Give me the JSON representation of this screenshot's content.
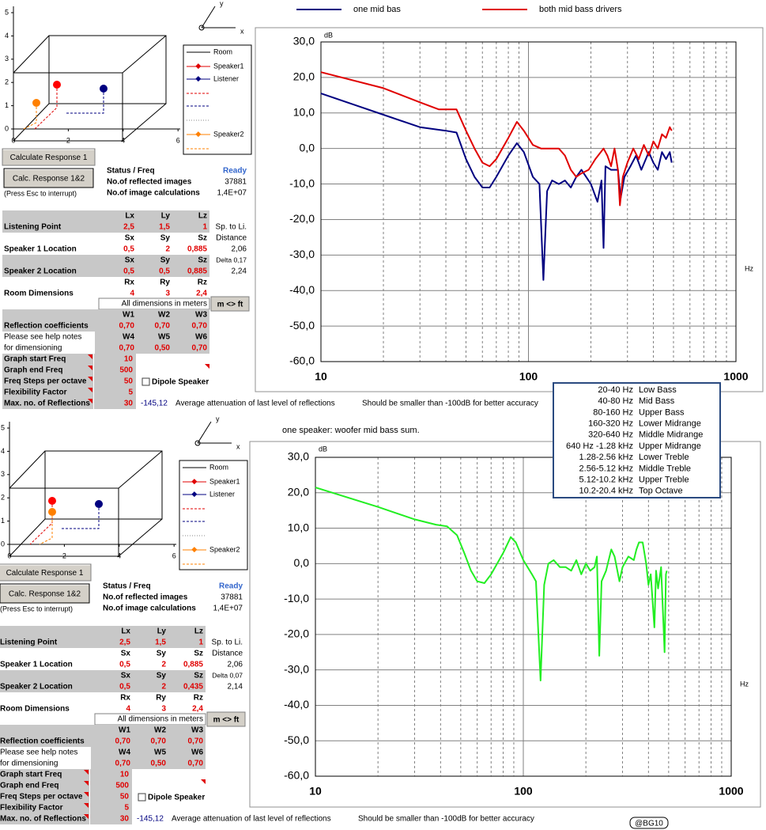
{
  "panels": [
    {
      "diagram": {
        "xticks": [
          0,
          2,
          4,
          6
        ],
        "yticks": [
          0,
          1,
          2,
          3,
          4,
          5
        ],
        "axis_x": "x",
        "axis_y": "y",
        "legend": [
          "Room",
          "Speaker1",
          "Listener",
          "Speaker2"
        ]
      },
      "buttons": [
        "Calculate Response 1",
        "Calc. Response 1&2"
      ],
      "interrupt_note": "(Press Esc to interrupt)",
      "status": [
        [
          "Status / Freq",
          "Ready"
        ],
        [
          "No.of reflected images",
          "37881"
        ],
        [
          "No.of image calculations",
          "1,4E+07"
        ]
      ],
      "blocks": [
        {
          "label": "Listening Point",
          "headers": [
            "Lx",
            "Ly",
            "Lz"
          ],
          "values": [
            "2,5",
            "1,5",
            "1"
          ],
          "side_value": "Sp. to Li."
        },
        {
          "label": "Speaker 1 Location",
          "headers": [
            "Sx",
            "Sy",
            "Sz"
          ],
          "values": [
            "0,5",
            "2",
            "0,885"
          ],
          "side_header": "Distance",
          "side_value": "2,06"
        },
        {
          "label": "Speaker 2 Location",
          "headers": [
            "Sx",
            "Sy",
            "Sz"
          ],
          "values": [
            "0,5",
            "0,5",
            "0,885"
          ],
          "side_header": "Delta 0,17",
          "side_value": "2,24"
        },
        {
          "label": "Room Dimensions",
          "headers": [
            "Rx",
            "Ry",
            "Rz"
          ],
          "values": [
            "4",
            "3",
            "2,4"
          ]
        }
      ],
      "units_note": "All dimensions in meters",
      "unit_button": "m <> ft",
      "reflection": [
        {
          "label": "Reflection coefficients",
          "headers": [
            "W1",
            "W2",
            "W3"
          ],
          "values": [
            "0,70",
            "0,70",
            "0,70"
          ]
        },
        {
          "label": [
            "Please see help notes",
            "for dimensioning"
          ],
          "headers": [
            "W4",
            "W5",
            "W6"
          ],
          "values": [
            "0,70",
            "0,50",
            "0,70"
          ]
        }
      ],
      "settings": [
        [
          "Graph start Freq",
          "10"
        ],
        [
          "Graph end Freq",
          "500"
        ],
        [
          "Freq Steps per octave",
          "50"
        ],
        [
          "Flexibility Factor",
          "5"
        ],
        [
          "Max. no. of Reflections",
          "30"
        ]
      ],
      "dipole": "Dipole Speaker",
      "attenuation": {
        "value": "-145,12",
        "label": "Average attenuation of last level of reflections",
        "note": "Should be smaller than -100dB for better accuracy"
      }
    },
    {
      "diagram": {
        "xticks": [
          0,
          2,
          4,
          6
        ],
        "yticks": [
          0,
          1,
          2,
          3,
          4,
          5
        ],
        "axis_x": "x",
        "axis_y": "y",
        "legend": [
          "Room",
          "Speaker1",
          "Listener",
          "Speaker2"
        ]
      },
      "buttons": [
        "Calculate Response 1",
        "Calc. Response 1&2"
      ],
      "interrupt_note": "(Press Esc to interrupt)",
      "status": [
        [
          "Status / Freq",
          "Ready"
        ],
        [
          "No.of reflected images",
          "37881"
        ],
        [
          "No.of image calculations",
          "1,4E+07"
        ]
      ],
      "blocks": [
        {
          "label": "Listening Point",
          "headers": [
            "Lx",
            "Ly",
            "Lz"
          ],
          "values": [
            "2,5",
            "1,5",
            "1"
          ],
          "side_value": "Sp. to Li."
        },
        {
          "label": "Speaker 1 Location",
          "headers": [
            "Sx",
            "Sy",
            "Sz"
          ],
          "values": [
            "0,5",
            "2",
            "0,885"
          ],
          "side_header": "Distance",
          "side_value": "2,06"
        },
        {
          "label": "Speaker 2 Location",
          "headers": [
            "Sx",
            "Sy",
            "Sz"
          ],
          "values": [
            "0,5",
            "2",
            "0,435"
          ],
          "side_header": "Delta 0,07",
          "side_value": "2,14"
        },
        {
          "label": "Room Dimensions",
          "headers": [
            "Rx",
            "Ry",
            "Rz"
          ],
          "values": [
            "4",
            "3",
            "2,4"
          ]
        }
      ],
      "units_note": "All dimensions in meters",
      "unit_button": "m <> ft",
      "reflection": [
        {
          "label": "Reflection coefficients",
          "headers": [
            "W1",
            "W2",
            "W3"
          ],
          "values": [
            "0,70",
            "0,70",
            "0,70"
          ]
        },
        {
          "label": [
            "Please see help notes",
            "for dimensioning"
          ],
          "headers": [
            "W4",
            "W5",
            "W6"
          ],
          "values": [
            "0,70",
            "0,50",
            "0,70"
          ]
        }
      ],
      "settings": [
        [
          "Graph start Freq",
          "10"
        ],
        [
          "Graph end Freq",
          "500"
        ],
        [
          "Freq Steps per octave",
          "50"
        ],
        [
          "Flexibility Factor",
          "5"
        ],
        [
          "Max. no. of Reflections",
          "30"
        ]
      ],
      "dipole": "Dipole Speaker",
      "attenuation": {
        "value": "-145,12",
        "label": "Average attenuation of last level of reflections",
        "note": "Should be smaller than -100dB for better accuracy"
      }
    }
  ],
  "chart_data": [
    {
      "type": "line",
      "log_x": true,
      "grid": true,
      "y_label": "dB",
      "x_label": "Hz",
      "xlim": [
        10,
        1000
      ],
      "xticks": [
        10,
        100,
        1000
      ],
      "ylim": [
        -60,
        30
      ],
      "yticks": [
        {
          "value": 30,
          "label": "30,0"
        },
        {
          "value": 20,
          "label": "20,0"
        },
        {
          "value": 10,
          "label": "10,0"
        },
        {
          "value": 0,
          "label": "0,0"
        },
        {
          "value": -10,
          "label": "-10,0"
        },
        {
          "value": -20,
          "label": "-20,0"
        },
        {
          "value": -30,
          "label": "-30,0"
        },
        {
          "value": -40,
          "label": "-40,0"
        },
        {
          "value": -50,
          "label": "-50,0"
        },
        {
          "value": -60,
          "label": "-60,0"
        }
      ],
      "series": [
        {
          "name": "one mid bas",
          "color": "#000080",
          "x": [
            10,
            15,
            20,
            30,
            40,
            45,
            50,
            55,
            60,
            65,
            70,
            80,
            88,
            95,
            105,
            113,
            118,
            123,
            130,
            140,
            150,
            160,
            170,
            180,
            200,
            215,
            225,
            230,
            235,
            250,
            270,
            278,
            290,
            310,
            330,
            350,
            380,
            400,
            420,
            440,
            460,
            480,
            490
          ],
          "values": [
            15.5,
            12,
            9.5,
            6,
            5,
            4.5,
            -3,
            -8,
            -11,
            -11,
            -8,
            -2,
            1.5,
            -1,
            -8,
            -10,
            -37,
            -12,
            -9,
            -10,
            -9,
            -11,
            -8,
            -6,
            -10,
            -15,
            -9,
            -28,
            -5,
            -6,
            -6,
            -14,
            -8,
            -5,
            -2,
            -6,
            -1,
            -4,
            -6,
            -1,
            -3,
            -1,
            -4
          ]
        },
        {
          "name": "both mid bass drivers",
          "color": "#e00000",
          "x": [
            10,
            20,
            30,
            37,
            45,
            50,
            55,
            60,
            65,
            70,
            80,
            88,
            95,
            105,
            115,
            130,
            140,
            150,
            160,
            170,
            180,
            195,
            210,
            230,
            240,
            250,
            260,
            270,
            276,
            285,
            300,
            320,
            340,
            360,
            380,
            400,
            420,
            440,
            460,
            480,
            490
          ],
          "values": [
            21.5,
            17,
            13,
            11,
            11,
            5,
            0,
            -4,
            -5,
            -3,
            3,
            7.5,
            5,
            1,
            0,
            0,
            0,
            -2,
            -6,
            -8,
            -7,
            -6,
            -3,
            0,
            -2,
            -5,
            0,
            -6,
            -16,
            -8,
            -4,
            0,
            -3,
            1,
            -2,
            2,
            0,
            4,
            3,
            6,
            5
          ]
        }
      ]
    },
    {
      "type": "line",
      "log_x": true,
      "grid": true,
      "title": "one speaker: woofer mid bass sum.",
      "y_label": "dB",
      "x_label": "Hz",
      "xlim": [
        10,
        1000
      ],
      "xticks": [
        10,
        100,
        1000
      ],
      "ylim": [
        -60,
        30
      ],
      "yticks": [
        {
          "value": 30,
          "label": "30,0"
        },
        {
          "value": 20,
          "label": "20,0"
        },
        {
          "value": 10,
          "label": "10,0"
        },
        {
          "value": 0,
          "label": "0,0"
        },
        {
          "value": -10,
          "label": "-10,0"
        },
        {
          "value": -20,
          "label": "-20,0"
        },
        {
          "value": -30,
          "label": "-30,0"
        },
        {
          "value": -40,
          "label": "-40,0"
        },
        {
          "value": -50,
          "label": "-50,0"
        },
        {
          "value": -60,
          "label": "-60,0"
        }
      ],
      "series": [
        {
          "color": "#22ee22",
          "x": [
            10,
            20,
            30,
            38,
            43,
            48,
            52,
            56,
            60,
            65,
            70,
            80,
            87,
            92,
            100,
            110,
            115,
            121,
            126,
            132,
            140,
            150,
            160,
            170,
            180,
            190,
            200,
            210,
            220,
            226,
            232,
            238,
            250,
            265,
            275,
            290,
            300,
            320,
            340,
            350,
            360,
            375,
            390,
            400,
            410,
            427,
            435,
            445,
            460,
            478,
            485,
            490
          ],
          "values": [
            21.5,
            16,
            12.5,
            11,
            10.5,
            8,
            3,
            -2,
            -5,
            -5.5,
            -3,
            3,
            7.5,
            6,
            1,
            -3,
            -5,
            -33,
            -6,
            0,
            1,
            -1,
            -1,
            -2,
            1,
            -3,
            0,
            -2,
            -1,
            2,
            -26,
            -5,
            -2,
            4,
            2,
            -5,
            -1,
            2,
            1,
            4,
            6,
            6,
            0,
            -6,
            -3,
            -18,
            -2,
            -7,
            -1,
            -25,
            -3,
            -2
          ]
        }
      ]
    }
  ],
  "band_table": [
    [
      "20-40 Hz",
      "Low Bass"
    ],
    [
      "40-80 Hz",
      "Mid Bass"
    ],
    [
      "80-160 Hz",
      "Upper Bass"
    ],
    [
      "160-320 Hz",
      "Lower Midrange"
    ],
    [
      "320-640 Hz",
      "Middle Midrange"
    ],
    [
      "640 Hz -1.28 kHz",
      "Upper Midrange"
    ],
    [
      "1.28-2.56 kHz",
      "Lower Treble"
    ],
    [
      "2.56-5.12 kHz",
      "Middle Treble"
    ],
    [
      "5.12-10.2 kHz",
      "Upper Treble"
    ],
    [
      "10.2-20.4 kHz",
      "Top Octave"
    ]
  ],
  "watermark": "@BG10"
}
